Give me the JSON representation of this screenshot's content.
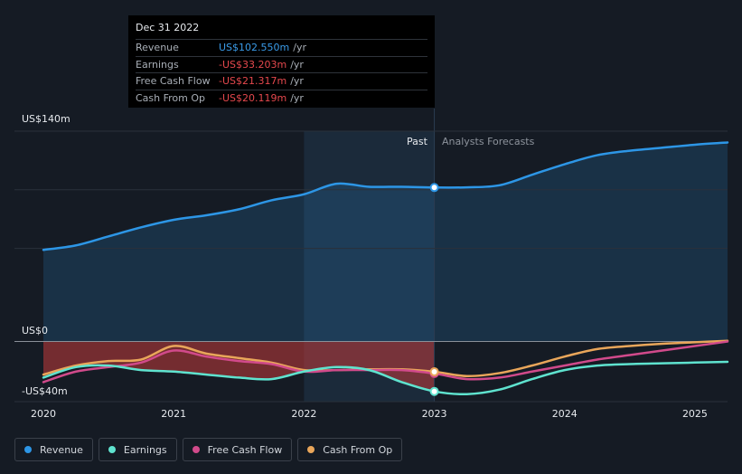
{
  "tooltip": {
    "date": "Dec 31 2022",
    "rows": [
      {
        "label": "Revenue",
        "value": "US$102.550m",
        "unit": "/yr",
        "color": "#3a9be8"
      },
      {
        "label": "Earnings",
        "value": "-US$33.203m",
        "unit": "/yr",
        "color": "#e5484d"
      },
      {
        "label": "Free Cash Flow",
        "value": "-US$21.317m",
        "unit": "/yr",
        "color": "#e5484d"
      },
      {
        "label": "Cash From Op",
        "value": "-US$20.119m",
        "unit": "/yr",
        "color": "#e5484d"
      }
    ]
  },
  "labels": {
    "past": "Past",
    "forecast": "Analysts Forecasts"
  },
  "legend": [
    {
      "label": "Revenue",
      "color": "#2d96e6"
    },
    {
      "label": "Earnings",
      "color": "#5fe3cf"
    },
    {
      "label": "Free Cash Flow",
      "color": "#d14a8b"
    },
    {
      "label": "Cash From Op",
      "color": "#e9a65a"
    }
  ],
  "chart_data": {
    "type": "line",
    "xlim": [
      2020,
      2025.25
    ],
    "ylim": [
      -40,
      140
    ],
    "y_tick_labels": [
      "US$140m",
      "US$0",
      "-US$40m"
    ],
    "x_ticks": [
      2020,
      2021,
      2022,
      2023,
      2024,
      2025
    ],
    "x_tick_labels": [
      "2020",
      "2021",
      "2022",
      "2023",
      "2024",
      "2025"
    ],
    "highlight_range": [
      2022,
      2023
    ],
    "marker_x": 2023,
    "past_end": 2023,
    "series": [
      {
        "name": "Revenue",
        "color": "#2d96e6",
        "x": [
          2020,
          2020.25,
          2020.5,
          2020.75,
          2021,
          2021.25,
          2021.5,
          2021.75,
          2022,
          2022.25,
          2022.5,
          2022.75,
          2023,
          2023.25,
          2023.5,
          2023.75,
          2024,
          2024.25,
          2024.5,
          2024.75,
          2025,
          2025.25
        ],
        "y": [
          61,
          64,
          70,
          76,
          81,
          84,
          88,
          94,
          98,
          105,
          103,
          103,
          102.5,
          102.6,
          104,
          111,
          118,
          124,
          127,
          129,
          131,
          132.5
        ]
      },
      {
        "name": "Earnings",
        "color": "#5fe3cf",
        "x": [
          2020,
          2020.25,
          2020.5,
          2020.75,
          2021,
          2021.25,
          2021.5,
          2021.75,
          2022,
          2022.25,
          2022.5,
          2022.75,
          2023,
          2023.25,
          2023.5,
          2023.75,
          2024,
          2024.25,
          2024.5,
          2024.75,
          2025,
          2025.25
        ],
        "y": [
          -24,
          -17,
          -16,
          -19,
          -20,
          -22,
          -24,
          -25,
          -20,
          -17,
          -19,
          -27,
          -33.2,
          -35,
          -32,
          -25,
          -19,
          -16,
          -15,
          -14.5,
          -14,
          -13.5
        ]
      },
      {
        "name": "Free Cash Flow",
        "color": "#d14a8b",
        "x": [
          2020,
          2020.25,
          2020.5,
          2020.75,
          2021,
          2021.25,
          2021.5,
          2021.75,
          2022,
          2022.25,
          2022.5,
          2022.75,
          2023,
          2023.25,
          2023.5,
          2023.75,
          2024,
          2024.25,
          2024.5,
          2024.75,
          2025,
          2025.25
        ],
        "y": [
          -27,
          -20,
          -17,
          -14,
          -6,
          -10,
          -13,
          -15,
          -20,
          -19,
          -19,
          -19,
          -21.3,
          -25,
          -24,
          -20,
          -16,
          -12,
          -9,
          -6,
          -3,
          0
        ]
      },
      {
        "name": "Cash From Op",
        "color": "#e9a65a",
        "x": [
          2020,
          2020.25,
          2020.5,
          2020.75,
          2021,
          2021.25,
          2021.5,
          2021.75,
          2022,
          2022.25,
          2022.5,
          2022.75,
          2023,
          2023.25,
          2023.5,
          2023.75,
          2024,
          2024.25,
          2024.5,
          2024.75,
          2025,
          2025.25
        ],
        "y": [
          -22,
          -16,
          -13,
          -12,
          -3,
          -8,
          -11,
          -14,
          -19,
          -19,
          -18.5,
          -18.5,
          -20.1,
          -23,
          -21,
          -16,
          -10,
          -5,
          -3,
          -1.5,
          -0.5,
          0.5
        ]
      }
    ]
  }
}
